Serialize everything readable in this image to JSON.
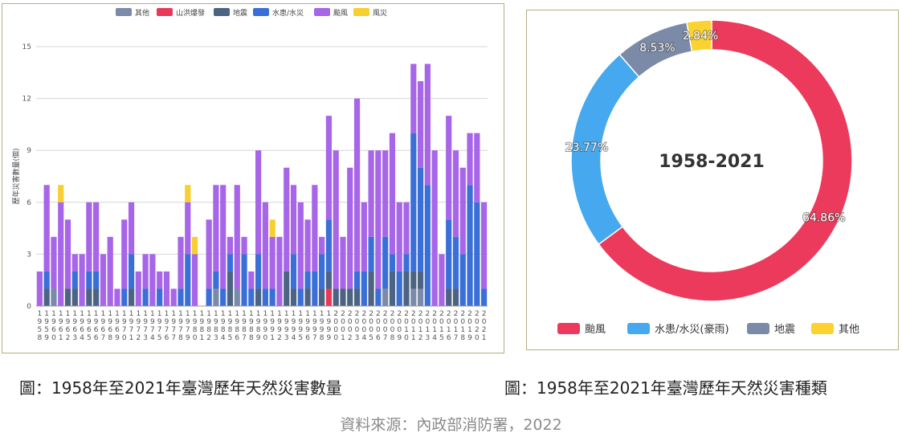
{
  "captions": {
    "left": "圖：1958年至2021年臺灣歷年天然災害數量",
    "right": "圖：1958年至2021年臺灣歷年天然災害種類",
    "source": "資料來源：內政部消防署，2022"
  },
  "chart_data": [
    {
      "type": "bar",
      "stacked": true,
      "title": "",
      "xlabel": "",
      "ylabel": "歷年災害數量(個)",
      "ylim": [
        0,
        15
      ],
      "yticks": [
        0,
        3,
        6,
        9,
        12,
        15
      ],
      "grid": true,
      "legend_position": "top",
      "categories": [
        "1958",
        "1959",
        "1960",
        "1961",
        "1962",
        "1963",
        "1964",
        "1965",
        "1966",
        "1967",
        "1968",
        "1969",
        "1970",
        "1971",
        "1972",
        "1973",
        "1974",
        "1975",
        "1976",
        "1977",
        "1978",
        "1979",
        "1980",
        "1981",
        "1982",
        "1983",
        "1984",
        "1985",
        "1986",
        "1987",
        "1988",
        "1989",
        "1990",
        "1991",
        "1992",
        "1993",
        "1994",
        "1995",
        "1996",
        "1997",
        "1998",
        "1999",
        "2000",
        "2001",
        "2002",
        "2003",
        "2004",
        "2005",
        "2006",
        "2007",
        "2008",
        "2009",
        "2010",
        "2011",
        "2012",
        "2013",
        "2014",
        "2015",
        "2016",
        "2017",
        "2018",
        "2019",
        "2020",
        "2021"
      ],
      "series": [
        {
          "name": "其他",
          "color": "#7b8aa8",
          "values": [
            0,
            0,
            1,
            0,
            0,
            0,
            0,
            0,
            0,
            0,
            0,
            0,
            0,
            0,
            0,
            0,
            0,
            0,
            0,
            0,
            0,
            0,
            0,
            0,
            0,
            1,
            0,
            0,
            1,
            0,
            0,
            0,
            0,
            0,
            0,
            0,
            0,
            0,
            0,
            0,
            0,
            0,
            0,
            0,
            0,
            0,
            0,
            0,
            0,
            1,
            0,
            0,
            0,
            1,
            1,
            0,
            0,
            0,
            0,
            0,
            0,
            0,
            0,
            0
          ]
        },
        {
          "name": "山洪爆發",
          "color": "#e8385a",
          "values": [
            0,
            0,
            0,
            0,
            0,
            0,
            0,
            0,
            0,
            0,
            0,
            0,
            0,
            0,
            0,
            0,
            0,
            0,
            0,
            0,
            0,
            0,
            0,
            0,
            0,
            0,
            0,
            0,
            0,
            0,
            0,
            0,
            0,
            0,
            0,
            0,
            0,
            0,
            0,
            0,
            0,
            1,
            0,
            0,
            0,
            0,
            0,
            0,
            0,
            0,
            0,
            0,
            0,
            0,
            0,
            0,
            0,
            0,
            0,
            0,
            0,
            0,
            0,
            0
          ]
        },
        {
          "name": "地震",
          "color": "#4c6382",
          "values": [
            0,
            1,
            0,
            0,
            1,
            1,
            0,
            1,
            1,
            0,
            0,
            0,
            0,
            1,
            0,
            0,
            0,
            0,
            0,
            0,
            0,
            0,
            0,
            0,
            0,
            0,
            0,
            2,
            0,
            0,
            0,
            1,
            0,
            0,
            0,
            2,
            1,
            0,
            1,
            0,
            1,
            1,
            1,
            1,
            1,
            1,
            0,
            2,
            0,
            0,
            2,
            0,
            2,
            1,
            1,
            0,
            0,
            0,
            1,
            1,
            0,
            0,
            0,
            0
          ]
        },
        {
          "name": "水患/水災",
          "color": "#3a6fd8",
          "values": [
            0,
            1,
            0,
            0,
            0,
            1,
            0,
            1,
            1,
            0,
            0,
            0,
            1,
            2,
            0,
            1,
            0,
            1,
            0,
            0,
            1,
            3,
            0,
            0,
            1,
            1,
            1,
            1,
            0,
            3,
            1,
            2,
            1,
            1,
            0,
            0,
            2,
            1,
            1,
            2,
            2,
            3,
            0,
            0,
            0,
            1,
            2,
            2,
            1,
            3,
            1,
            2,
            1,
            8,
            6,
            7,
            0,
            0,
            4,
            3,
            3,
            7,
            6,
            1
          ]
        },
        {
          "name": "颱風",
          "color": "#a765e8",
          "values": [
            2,
            5,
            3,
            6,
            4,
            1,
            3,
            4,
            4,
            3,
            4,
            1,
            4,
            3,
            2,
            2,
            3,
            1,
            2,
            1,
            3,
            3,
            3,
            0,
            4,
            5,
            6,
            1,
            6,
            1,
            1,
            6,
            5,
            3,
            4,
            6,
            4,
            5,
            3,
            5,
            1,
            6,
            8,
            3,
            7,
            10,
            4,
            5,
            8,
            5,
            7,
            4,
            3,
            4,
            5,
            7,
            9,
            3,
            6,
            5,
            5,
            3,
            4,
            5
          ]
        },
        {
          "name": "風災",
          "color": "#f7cf31",
          "values": [
            0,
            0,
            0,
            1,
            0,
            0,
            0,
            0,
            0,
            0,
            0,
            0,
            0,
            0,
            0,
            0,
            0,
            0,
            0,
            0,
            0,
            1,
            1,
            0,
            0,
            0,
            0,
            0,
            0,
            0,
            0,
            0,
            0,
            1,
            0,
            0,
            0,
            0,
            0,
            0,
            0,
            0,
            0,
            0,
            0,
            0,
            0,
            0,
            0,
            0,
            0,
            0,
            0,
            0,
            0,
            0,
            0,
            0,
            0,
            0,
            0,
            0,
            0,
            0
          ]
        }
      ]
    },
    {
      "type": "pie",
      "donut": true,
      "center_label": "1958-2021",
      "legend_position": "bottom",
      "slices": [
        {
          "name": "颱風",
          "value": 64.86,
          "label": "64.86%",
          "color": "#ec3a5c"
        },
        {
          "name": "水患/水災(豪雨)",
          "value": 23.77,
          "label": "23.77%",
          "color": "#46a8ee"
        },
        {
          "name": "地震",
          "value": 8.53,
          "label": "8.53%",
          "color": "#7b8aa6"
        },
        {
          "name": "其他",
          "value": 2.84,
          "label": "2.84%",
          "color": "#fbd22f"
        }
      ]
    }
  ]
}
